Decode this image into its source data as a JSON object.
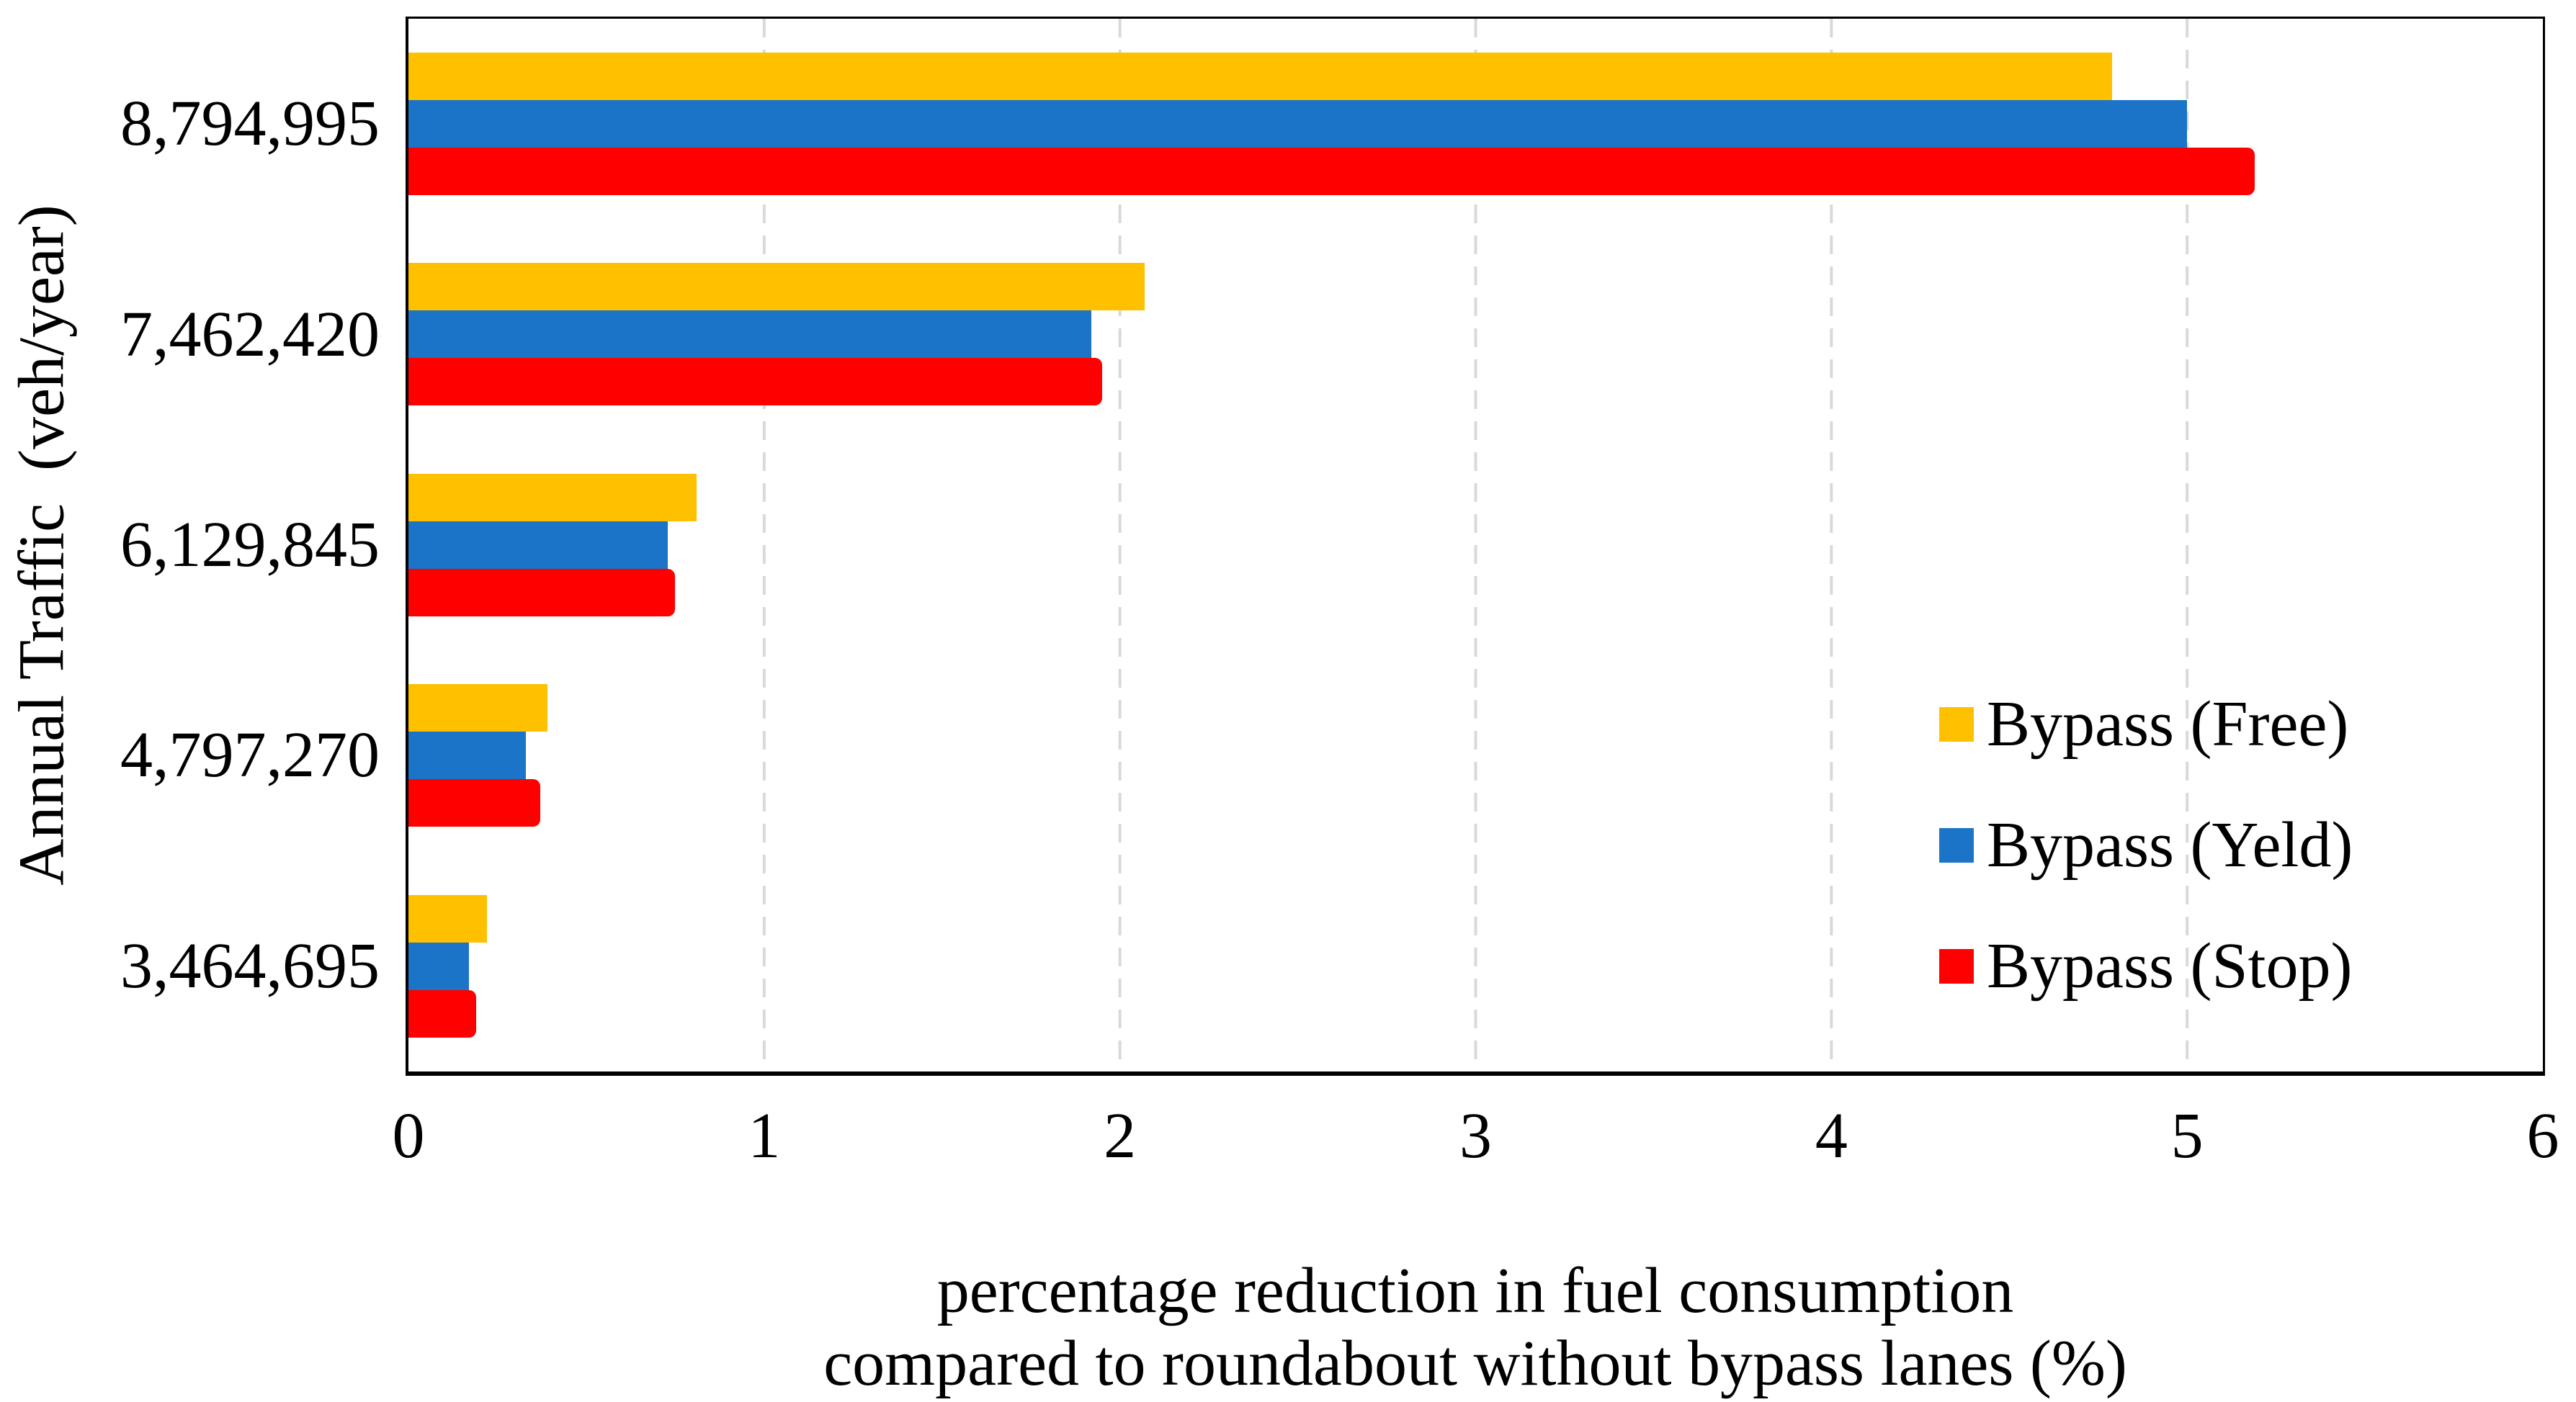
{
  "figure": {
    "background": "#FFFFFF",
    "axis_color": "#000000",
    "gridline_color": "#D9D9D9",
    "gridline_style": "dashed"
  },
  "chart_data": {
    "type": "bar",
    "orientation": "horizontal",
    "title": "",
    "ylabel": "Annual Traffic  (veh/year)",
    "xlabel_lines": [
      "percentage reduction in fuel consumption",
      "compared to roundabout without bypass lanes (%)"
    ],
    "categories": [
      "8,794,995",
      "7,462,420",
      "6,129,845",
      "4,797,270",
      "3,464,695"
    ],
    "series": [
      {
        "name": "Bypass (Free)",
        "color": "#FFC000",
        "values": [
          4.79,
          2.07,
          0.81,
          0.39,
          0.22
        ]
      },
      {
        "name": "Bypass (Yeld)",
        "color": "#1B74C8",
        "values": [
          5.0,
          1.92,
          0.73,
          0.33,
          0.17
        ]
      },
      {
        "name": "Bypass (Stop)",
        "color": "#FF0000",
        "values": [
          5.19,
          1.95,
          0.75,
          0.37,
          0.19
        ]
      }
    ],
    "xlim": [
      0,
      6
    ],
    "xticks": [
      "0",
      "1",
      "2",
      "3",
      "4",
      "5",
      "6"
    ],
    "grid": "vertical dashed at each x tick",
    "legend_position": "inside right, transparent, no border"
  }
}
